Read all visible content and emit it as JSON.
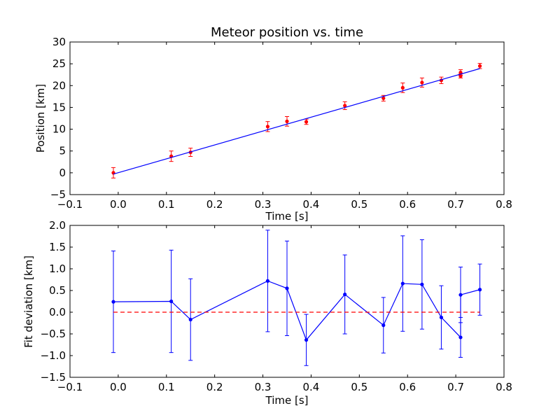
{
  "chart_data": [
    {
      "type": "scatter",
      "title": "Meteor position vs. time",
      "xlabel": "Time [s]",
      "ylabel": "Position [km]",
      "xlim": [
        -0.1,
        0.8
      ],
      "ylim": [
        -5,
        30
      ],
      "xticks": [
        "−0.1",
        "0.0",
        "0.1",
        "0.2",
        "0.3",
        "0.4",
        "0.5",
        "0.6",
        "0.7",
        "0.8"
      ],
      "yticks": [
        "−5",
        "0",
        "5",
        "10",
        "15",
        "20",
        "25",
        "30"
      ],
      "grid": false,
      "series": [
        {
          "kind": "errorbar",
          "color": "#ff0000",
          "x": [
            -0.01,
            0.11,
            0.15,
            0.31,
            0.35,
            0.39,
            0.47,
            0.55,
            0.59,
            0.63,
            0.67,
            0.71,
            0.71,
            0.75
          ],
          "y": [
            0.0,
            3.8,
            4.7,
            10.6,
            11.8,
            11.7,
            15.4,
            17.1,
            19.5,
            20.7,
            21.2,
            22.2,
            23.0,
            24.5
          ],
          "yerr": [
            1.2,
            1.2,
            0.95,
            1.15,
            1.1,
            0.6,
            0.9,
            0.65,
            1.1,
            1.05,
            0.75,
            0.45,
            0.65,
            0.6
          ]
        },
        {
          "kind": "fit-line",
          "color": "#0000ff",
          "x": [
            -0.01,
            0.75
          ],
          "y": [
            -0.3,
            23.9
          ]
        }
      ]
    },
    {
      "type": "line",
      "title": "",
      "xlabel": "Time [s]",
      "ylabel": "Fit deviation [km]",
      "xlim": [
        -0.1,
        0.8
      ],
      "ylim": [
        -1.5,
        2.0
      ],
      "xticks": [
        "−0.1",
        "0.0",
        "0.1",
        "0.2",
        "0.3",
        "0.4",
        "0.5",
        "0.6",
        "0.7",
        "0.8"
      ],
      "yticks": [
        "−1.5",
        "−1.0",
        "−0.5",
        "0.0",
        "0.5",
        "1.0",
        "1.5",
        "2.0"
      ],
      "grid": false,
      "series": [
        {
          "kind": "errorbar-line",
          "color": "#0000ff",
          "x": [
            -0.01,
            0.11,
            0.15,
            0.31,
            0.35,
            0.39,
            0.47,
            0.55,
            0.59,
            0.63,
            0.67,
            0.71,
            0.71,
            0.75
          ],
          "y": [
            0.24,
            0.25,
            -0.17,
            0.72,
            0.55,
            -0.64,
            0.41,
            -0.3,
            0.66,
            0.64,
            -0.12,
            -0.58,
            0.4,
            0.52
          ],
          "yerr": [
            1.17,
            1.18,
            0.94,
            1.17,
            1.09,
            0.59,
            0.91,
            0.64,
            1.1,
            1.03,
            0.73,
            0.46,
            0.64,
            0.59
          ]
        },
        {
          "kind": "zero-line",
          "color": "#ff0000",
          "style": "dashed",
          "x": [
            -0.01,
            0.75
          ],
          "y": [
            0,
            0
          ]
        }
      ]
    }
  ]
}
